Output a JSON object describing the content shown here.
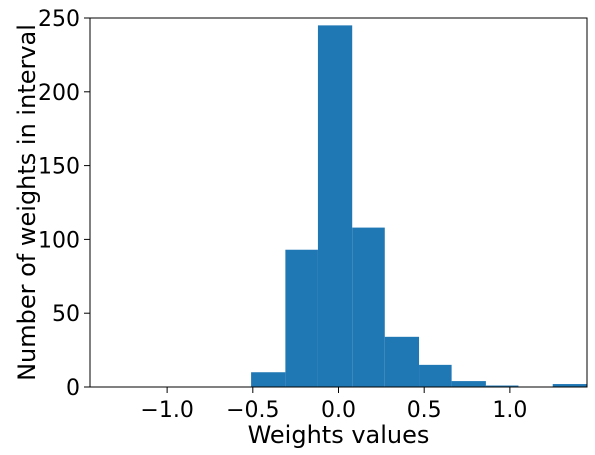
{
  "chart_data": {
    "type": "bar",
    "title": "",
    "xlabel": "Weights values",
    "ylabel": "Number of weights in interval",
    "xlim": [
      -1.45,
      1.45
    ],
    "ylim": [
      0,
      250
    ],
    "xticks": [
      -1.0,
      -0.5,
      0.0,
      0.5,
      1.0
    ],
    "xtick_labels": [
      "−1.0",
      "−0.5",
      "0.0",
      "0.5",
      "1.0"
    ],
    "yticks": [
      0,
      50,
      100,
      150,
      200,
      250
    ],
    "ytick_labels": [
      "0",
      "50",
      "100",
      "150",
      "200",
      "250"
    ],
    "grid": false,
    "bar_color": "#1f77b4",
    "bins": [
      {
        "x0": -0.51,
        "x1": -0.31,
        "count": 10
      },
      {
        "x0": -0.31,
        "x1": -0.12,
        "count": 93
      },
      {
        "x0": -0.12,
        "x1": 0.08,
        "count": 245
      },
      {
        "x0": 0.08,
        "x1": 0.27,
        "count": 108
      },
      {
        "x0": 0.27,
        "x1": 0.47,
        "count": 34
      },
      {
        "x0": 0.47,
        "x1": 0.66,
        "count": 15
      },
      {
        "x0": 0.66,
        "x1": 0.86,
        "count": 4
      },
      {
        "x0": 0.86,
        "x1": 1.05,
        "count": 1
      },
      {
        "x0": 1.05,
        "x1": 1.25,
        "count": 0
      },
      {
        "x0": 1.25,
        "x1": 1.45,
        "count": 2
      }
    ]
  }
}
